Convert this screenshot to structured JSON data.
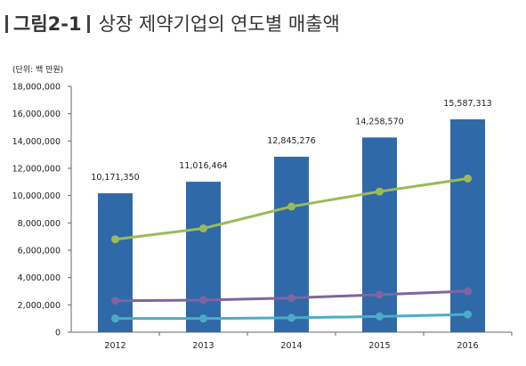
{
  "figure": {
    "label": "그림2-1",
    "title": "상장 제약기업의 연도별 매출액",
    "unit": "(단위: 백 만원)"
  },
  "chart_data": {
    "type": "bar",
    "categories": [
      "2012",
      "2013",
      "2014",
      "2015",
      "2016"
    ],
    "ylim": [
      0,
      18000000
    ],
    "yticks": [
      0,
      2000000,
      4000000,
      6000000,
      8000000,
      10000000,
      12000000,
      14000000,
      16000000,
      18000000
    ],
    "ytick_labels": [
      "0",
      "2,000,000",
      "4,000,000",
      "6,000,000",
      "8,000,000",
      "10,000,000",
      "12,000,000",
      "14,000,000",
      "16,000,000",
      "18,000,000"
    ],
    "bar_series": {
      "values": [
        10171350,
        11016464,
        12845276,
        14258570,
        15587313
      ],
      "labels": [
        "10,171,350",
        "11,016,464",
        "12,845,276",
        "14,258,570",
        "15,587,313"
      ],
      "color": "#2f69a8"
    },
    "line_series": [
      {
        "values": [
          6800000,
          7600000,
          9200000,
          10300000,
          11250000
        ],
        "color": "#9bbb59"
      },
      {
        "values": [
          2300000,
          2350000,
          2500000,
          2750000,
          3000000
        ],
        "color": "#8064a2"
      },
      {
        "values": [
          1000000,
          1000000,
          1050000,
          1150000,
          1300000
        ],
        "color": "#4bacc6"
      }
    ],
    "grid": false,
    "legend": "none"
  }
}
